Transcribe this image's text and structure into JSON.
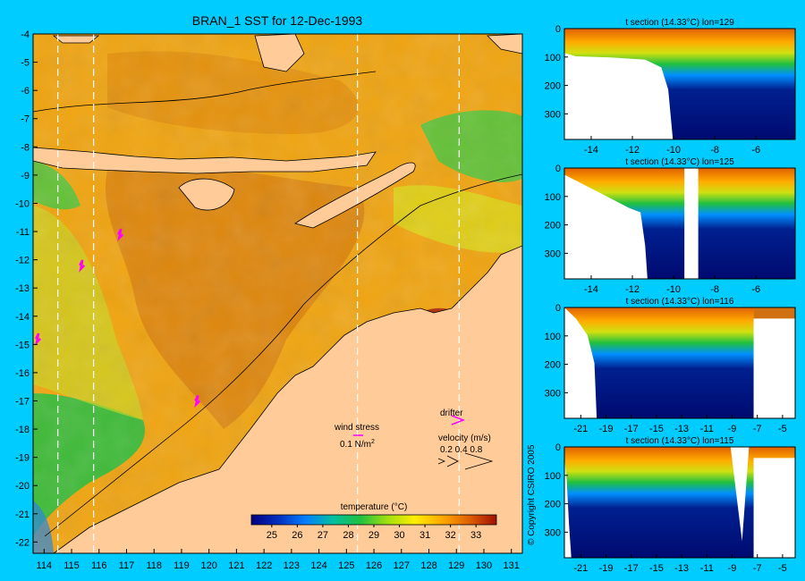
{
  "chart_data": [
    {
      "type": "heatmap",
      "title": "BRAN_1 SST for 12-Dec-1993",
      "x_ticks": [
        114,
        115,
        116,
        117,
        118,
        119,
        120,
        121,
        122,
        123,
        124,
        125,
        126,
        127,
        128,
        129,
        130,
        131
      ],
      "y_ticks": [
        -4,
        -5,
        -6,
        -7,
        -8,
        -9,
        -10,
        -11,
        -12,
        -13,
        -14,
        -15,
        -16,
        -17,
        -18,
        -19,
        -20,
        -21,
        -22
      ],
      "xlim": [
        113.6,
        131.4
      ],
      "ylim": [
        -22.4,
        -4
      ],
      "section_lons": [
        114.5,
        115.8,
        125.4,
        129.1
      ],
      "colorbar": {
        "label": "temperature (°C)",
        "ticks": [
          25,
          26,
          27,
          28,
          29,
          30,
          31,
          32,
          33
        ],
        "range": [
          24.2,
          33.8
        ],
        "colors": [
          "#000080",
          "#0030c0",
          "#0080ff",
          "#00c0a0",
          "#20c040",
          "#a0e010",
          "#ffee00",
          "#ffaa00",
          "#e06000",
          "#a01000"
        ]
      },
      "legend": {
        "wind_stress_label": "wind stress",
        "wind_stress_value": "0.1 N/m",
        "wind_stress_exp": "2",
        "drifter_label": "drifter",
        "velocity_label": "velocity (m/s)",
        "velocity_values": "0.2 0.4 0.8"
      },
      "drifters": [
        {
          "lon": 116.7,
          "lat": -11.1
        },
        {
          "lon": 115.3,
          "lat": -12.2
        },
        {
          "lon": 113.7,
          "lat": -14.8
        },
        {
          "lon": 119.5,
          "lat": -17.0
        }
      ]
    },
    {
      "type": "heatmap",
      "title": "t section (14.33°C) lon=129",
      "x_ticks": [
        -14,
        -12,
        -10,
        -8,
        -6
      ],
      "y_ticks": [
        0,
        100,
        200,
        300
      ],
      "xlim": [
        -15.3,
        -4.1
      ],
      "ylim": [
        390,
        0
      ]
    },
    {
      "type": "heatmap",
      "title": "t section (14.33°C) lon=125",
      "x_ticks": [
        -14,
        -12,
        -10,
        -8,
        -6
      ],
      "y_ticks": [
        0,
        100,
        200,
        300
      ],
      "xlim": [
        -15.3,
        -4.1
      ],
      "ylim": [
        390,
        0
      ]
    },
    {
      "type": "heatmap",
      "title": "t section (14.33°C) lon=116",
      "x_ticks": [
        -21,
        -19,
        -17,
        -15,
        -13,
        -11,
        -9,
        -7,
        -5
      ],
      "y_ticks": [
        0,
        100,
        200,
        300
      ],
      "xlim": [
        -22.3,
        -4
      ],
      "ylim": [
        390,
        0
      ]
    },
    {
      "type": "heatmap",
      "title": "t section (14.33°C) lon=115",
      "x_ticks": [
        -21,
        -19,
        -17,
        -15,
        -13,
        -11,
        -9,
        -7,
        -5
      ],
      "y_ticks": [
        0,
        100,
        200,
        300
      ],
      "xlim": [
        -22.3,
        -4
      ],
      "ylim": [
        390,
        0
      ]
    }
  ],
  "copyright": "© Copyright CSIRO 2005"
}
